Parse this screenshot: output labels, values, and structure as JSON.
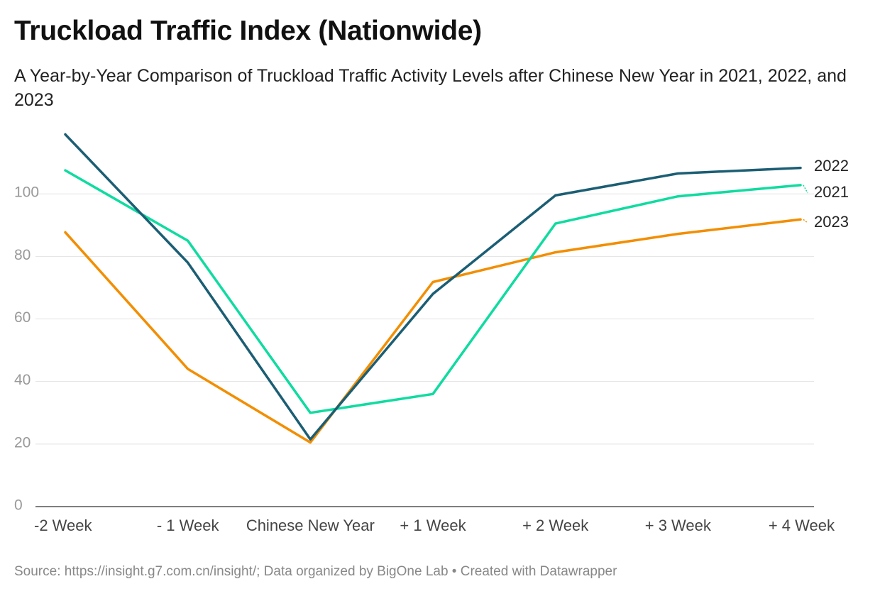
{
  "chart_data": {
    "type": "line",
    "title": "Truckload Traffic Index (Nationwide)",
    "subtitle": "A Year-by-Year Comparison of Truckload Traffic Activity Levels after Chinese New Year in 2021, 2022, and 2023",
    "categories": [
      "-2 Week",
      "- 1 Week",
      "Chinese New Year",
      "+ 1 Week",
      "+ 2 Week",
      "+ 3 Week",
      "+ 4 Week"
    ],
    "yticks": [
      "0",
      "20",
      "40",
      "60",
      "80",
      "100"
    ],
    "ylim": [
      0,
      120
    ],
    "xlabel": "",
    "ylabel": "",
    "grid": true,
    "series": [
      {
        "name": "2022",
        "color": "#1b5e74",
        "values": [
          119,
          78,
          21.5,
          68,
          99.5,
          106.5,
          108.3
        ]
      },
      {
        "name": "2021",
        "color": "#10dba0",
        "values": [
          107.5,
          85,
          30,
          36,
          90.5,
          99.2,
          102.8
        ]
      },
      {
        "name": "2023",
        "color": "#f28e00",
        "values": [
          87.7,
          44,
          20.5,
          71.8,
          81.3,
          87.2,
          91.8
        ]
      }
    ],
    "source": "Source: https://insight.g7.com.cn/insight/; Data organized by BigOne Lab • Created with Datawrapper"
  }
}
